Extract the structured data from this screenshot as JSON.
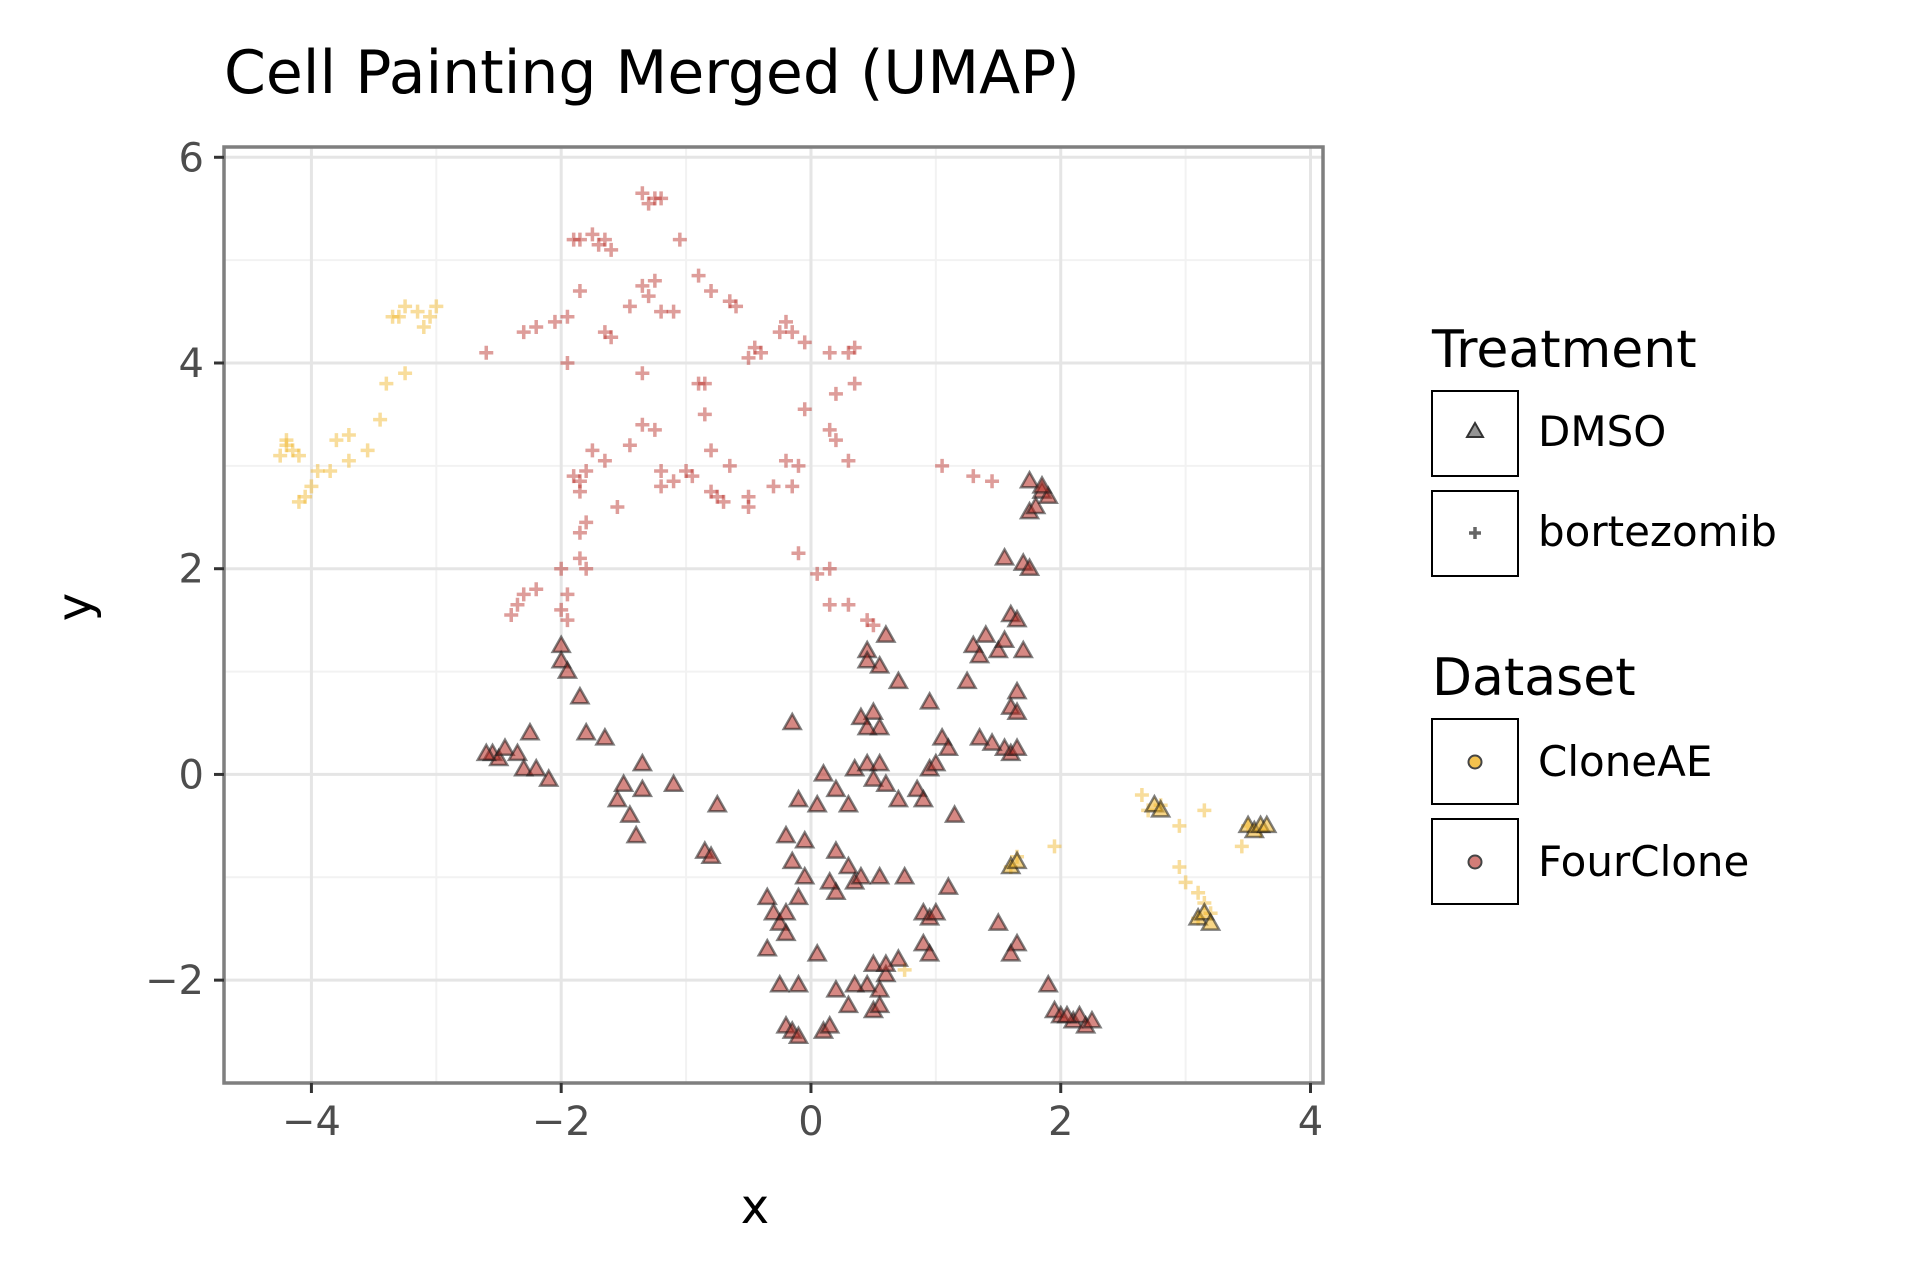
{
  "chart_data": {
    "type": "scatter",
    "title": "Cell Painting Merged (UMAP)",
    "xlabel": "x",
    "ylabel": "y",
    "xlim": [
      -4.7,
      4.1
    ],
    "ylim": [
      -3.0,
      6.1
    ],
    "xticks": [
      -4,
      -2,
      0,
      2,
      4
    ],
    "yticks": [
      -2,
      0,
      2,
      4,
      6
    ],
    "xtick_labels": [
      "−4",
      "−2",
      "0",
      "2",
      "4"
    ],
    "ytick_labels": [
      "−2",
      "0",
      "2",
      "4",
      "6"
    ],
    "grid": true,
    "legend_position": "right",
    "legend": {
      "shape_title": "Treatment",
      "shape_entries": [
        {
          "label": "DMSO",
          "shape": "triangle"
        },
        {
          "label": "bortezomib",
          "shape": "plus"
        }
      ],
      "color_title": "Dataset",
      "color_entries": [
        {
          "label": "CloneAE",
          "color": "#f0b323"
        },
        {
          "label": "FourClone",
          "color": "#b5261e"
        }
      ]
    },
    "colors": {
      "CloneAE": "#f0b323",
      "FourClone": "#b5261e",
      "DMSO_outline": "#1a1a1a",
      "panel_border": "#7f7f7f",
      "grid_major": "#e5e5e5",
      "grid_minor": "#f2f2f2"
    },
    "series": [
      {
        "treatment": "bortezomib",
        "dataset": "CloneAE",
        "points": [
          [
            -4.25,
            3.1
          ],
          [
            -4.2,
            3.2
          ],
          [
            -4.15,
            3.15
          ],
          [
            -4.2,
            3.25
          ],
          [
            -4.1,
            3.1
          ],
          [
            -4.1,
            2.65
          ],
          [
            -4.05,
            2.7
          ],
          [
            -4.0,
            2.8
          ],
          [
            -3.95,
            2.95
          ],
          [
            -3.85,
            2.95
          ],
          [
            -3.8,
            3.25
          ],
          [
            -3.7,
            3.3
          ],
          [
            -3.7,
            3.05
          ],
          [
            -3.55,
            3.15
          ],
          [
            -3.45,
            3.45
          ],
          [
            -3.4,
            3.8
          ],
          [
            -3.25,
            3.9
          ],
          [
            -3.3,
            4.45
          ],
          [
            -3.25,
            4.55
          ],
          [
            -3.15,
            4.5
          ],
          [
            -3.05,
            4.45
          ],
          [
            -3.0,
            4.55
          ],
          [
            -3.1,
            4.35
          ],
          [
            -3.35,
            4.45
          ],
          [
            2.65,
            -0.2
          ],
          [
            2.7,
            -0.35
          ],
          [
            2.8,
            -0.3
          ],
          [
            2.95,
            -0.5
          ],
          [
            2.95,
            -0.9
          ],
          [
            3.0,
            -1.05
          ],
          [
            3.1,
            -1.15
          ],
          [
            3.15,
            -1.25
          ],
          [
            3.1,
            -1.4
          ],
          [
            3.2,
            -1.35
          ],
          [
            3.15,
            -0.35
          ],
          [
            3.45,
            -0.7
          ],
          [
            3.5,
            -0.5
          ],
          [
            3.6,
            -0.55
          ],
          [
            1.65,
            -0.8
          ],
          [
            1.95,
            -0.7
          ],
          [
            1.6,
            -0.9
          ],
          [
            0.75,
            -1.9
          ]
        ]
      },
      {
        "treatment": "bortezomib",
        "dataset": "FourClone",
        "points": [
          [
            -1.35,
            5.65
          ],
          [
            -1.25,
            5.6
          ],
          [
            -1.3,
            5.55
          ],
          [
            -1.2,
            5.6
          ],
          [
            -1.85,
            5.2
          ],
          [
            -1.75,
            5.25
          ],
          [
            -1.7,
            5.15
          ],
          [
            -1.6,
            5.1
          ],
          [
            -1.9,
            5.2
          ],
          [
            -1.65,
            5.2
          ],
          [
            -1.05,
            5.2
          ],
          [
            -2.6,
            4.1
          ],
          [
            -2.3,
            4.3
          ],
          [
            -2.2,
            4.35
          ],
          [
            -2.05,
            4.4
          ],
          [
            -1.95,
            4.45
          ],
          [
            -1.85,
            4.7
          ],
          [
            -1.65,
            4.3
          ],
          [
            -1.6,
            4.25
          ],
          [
            -1.45,
            4.55
          ],
          [
            -1.35,
            4.75
          ],
          [
            -1.3,
            4.65
          ],
          [
            -1.25,
            4.8
          ],
          [
            -1.2,
            4.5
          ],
          [
            -1.1,
            4.5
          ],
          [
            -0.9,
            4.85
          ],
          [
            -0.8,
            4.7
          ],
          [
            -0.65,
            4.6
          ],
          [
            -0.6,
            4.55
          ],
          [
            -0.25,
            4.3
          ],
          [
            -0.2,
            4.4
          ],
          [
            -0.15,
            4.3
          ],
          [
            -0.05,
            4.2
          ],
          [
            -0.5,
            4.05
          ],
          [
            -0.45,
            4.15
          ],
          [
            -0.4,
            4.1
          ],
          [
            0.15,
            4.1
          ],
          [
            0.3,
            4.1
          ],
          [
            0.35,
            4.15
          ],
          [
            -1.95,
            4.0
          ],
          [
            -1.35,
            3.9
          ],
          [
            -0.9,
            3.8
          ],
          [
            -0.85,
            3.8
          ],
          [
            -0.85,
            3.5
          ],
          [
            -0.05,
            3.55
          ],
          [
            0.2,
            3.7
          ],
          [
            0.35,
            3.8
          ],
          [
            -1.35,
            3.4
          ],
          [
            -1.25,
            3.35
          ],
          [
            -1.45,
            3.2
          ],
          [
            -0.8,
            3.15
          ],
          [
            0.15,
            3.35
          ],
          [
            0.2,
            3.25
          ],
          [
            0.3,
            3.05
          ],
          [
            -0.65,
            3.0
          ],
          [
            -0.2,
            3.05
          ],
          [
            -0.1,
            3.0
          ],
          [
            -1.75,
            3.15
          ],
          [
            -1.65,
            3.05
          ],
          [
            -1.9,
            2.9
          ],
          [
            -1.85,
            2.85
          ],
          [
            -1.8,
            2.95
          ],
          [
            -1.2,
            2.95
          ],
          [
            -1.0,
            2.95
          ],
          [
            -0.95,
            2.9
          ],
          [
            -1.1,
            2.85
          ],
          [
            -1.2,
            2.8
          ],
          [
            -0.8,
            2.75
          ],
          [
            -0.75,
            2.7
          ],
          [
            -0.7,
            2.65
          ],
          [
            -0.5,
            2.7
          ],
          [
            -0.3,
            2.8
          ],
          [
            -0.15,
            2.8
          ],
          [
            -0.5,
            2.6
          ],
          [
            -1.55,
            2.6
          ],
          [
            -1.85,
            2.75
          ],
          [
            -1.8,
            2.45
          ],
          [
            -1.85,
            2.35
          ],
          [
            1.05,
            3.0
          ],
          [
            1.3,
            2.9
          ],
          [
            1.45,
            2.85
          ],
          [
            -2.0,
            2.0
          ],
          [
            -1.85,
            2.1
          ],
          [
            -1.8,
            2.0
          ],
          [
            -2.2,
            1.8
          ],
          [
            -2.35,
            1.65
          ],
          [
            -2.3,
            1.75
          ],
          [
            -2.4,
            1.55
          ],
          [
            -2.0,
            1.6
          ],
          [
            -1.95,
            1.5
          ],
          [
            -1.95,
            1.75
          ],
          [
            -0.1,
            2.15
          ],
          [
            0.05,
            1.95
          ],
          [
            0.15,
            2.0
          ],
          [
            0.15,
            1.65
          ],
          [
            0.3,
            1.65
          ],
          [
            0.45,
            1.5
          ],
          [
            0.5,
            1.45
          ]
        ]
      },
      {
        "treatment": "DMSO",
        "dataset": "CloneAE",
        "points": [
          [
            1.6,
            -0.9
          ],
          [
            1.65,
            -0.85
          ],
          [
            2.75,
            -0.3
          ],
          [
            2.8,
            -0.35
          ],
          [
            3.1,
            -1.4
          ],
          [
            3.15,
            -1.35
          ],
          [
            3.2,
            -1.45
          ],
          [
            3.5,
            -0.5
          ],
          [
            3.55,
            -0.55
          ],
          [
            3.6,
            -0.5
          ],
          [
            3.65,
            -0.5
          ]
        ]
      },
      {
        "treatment": "DMSO",
        "dataset": "FourClone",
        "points": [
          [
            -2.55,
            0.2
          ],
          [
            -2.5,
            0.15
          ],
          [
            -2.45,
            0.25
          ],
          [
            -2.6,
            0.2
          ],
          [
            -2.35,
            0.2
          ],
          [
            -2.3,
            0.05
          ],
          [
            -2.2,
            0.05
          ],
          [
            -2.1,
            -0.05
          ],
          [
            -2.25,
            0.4
          ],
          [
            -2.0,
            1.25
          ],
          [
            -2.0,
            1.1
          ],
          [
            -1.95,
            1.0
          ],
          [
            -1.85,
            0.75
          ],
          [
            -1.8,
            0.4
          ],
          [
            -1.65,
            0.35
          ],
          [
            -1.55,
            -0.25
          ],
          [
            -1.5,
            -0.1
          ],
          [
            -1.45,
            -0.4
          ],
          [
            -1.4,
            -0.6
          ],
          [
            -1.35,
            -0.15
          ],
          [
            -1.35,
            0.1
          ],
          [
            -1.1,
            -0.1
          ],
          [
            -0.85,
            -0.75
          ],
          [
            -0.8,
            -0.8
          ],
          [
            -0.75,
            -0.3
          ],
          [
            -0.35,
            -1.2
          ],
          [
            -0.3,
            -1.35
          ],
          [
            -0.25,
            -1.45
          ],
          [
            -0.2,
            -1.35
          ],
          [
            -0.2,
            -1.55
          ],
          [
            -0.1,
            -1.2
          ],
          [
            -0.05,
            -1.0
          ],
          [
            -0.35,
            -1.7
          ],
          [
            -0.25,
            -2.05
          ],
          [
            -0.1,
            -2.05
          ],
          [
            -0.2,
            -2.45
          ],
          [
            -0.15,
            -2.5
          ],
          [
            -0.1,
            -2.55
          ],
          [
            0.1,
            -2.5
          ],
          [
            0.15,
            -2.45
          ],
          [
            0.2,
            -2.1
          ],
          [
            0.3,
            -2.25
          ],
          [
            0.45,
            -2.05
          ],
          [
            0.5,
            -2.3
          ],
          [
            0.55,
            -2.25
          ],
          [
            0.6,
            -1.95
          ],
          [
            0.7,
            -1.8
          ],
          [
            0.05,
            -1.75
          ],
          [
            -0.15,
            -0.85
          ],
          [
            -0.05,
            -0.65
          ],
          [
            -0.2,
            -0.6
          ],
          [
            0.05,
            -0.3
          ],
          [
            -0.1,
            -0.25
          ],
          [
            0.1,
            0.0
          ],
          [
            0.2,
            -0.15
          ],
          [
            0.3,
            -0.3
          ],
          [
            0.35,
            0.05
          ],
          [
            0.45,
            0.1
          ],
          [
            0.5,
            -0.05
          ],
          [
            0.55,
            0.1
          ],
          [
            0.6,
            -0.1
          ],
          [
            0.7,
            -0.25
          ],
          [
            0.85,
            -0.15
          ],
          [
            0.9,
            -0.25
          ],
          [
            0.95,
            0.05
          ],
          [
            1.0,
            0.1
          ],
          [
            1.05,
            0.35
          ],
          [
            1.1,
            0.25
          ],
          [
            1.15,
            -0.4
          ],
          [
            -0.15,
            0.5
          ],
          [
            0.45,
            1.2
          ],
          [
            0.45,
            1.1
          ],
          [
            0.55,
            1.05
          ],
          [
            0.6,
            1.35
          ],
          [
            0.7,
            0.9
          ],
          [
            0.5,
            0.6
          ],
          [
            0.55,
            0.45
          ],
          [
            0.4,
            0.55
          ],
          [
            0.45,
            0.45
          ],
          [
            0.95,
            0.7
          ],
          [
            1.25,
            0.9
          ],
          [
            1.3,
            1.25
          ],
          [
            1.35,
            1.15
          ],
          [
            1.4,
            1.35
          ],
          [
            1.5,
            1.2
          ],
          [
            1.55,
            1.3
          ],
          [
            1.6,
            1.55
          ],
          [
            1.65,
            1.5
          ],
          [
            1.7,
            1.2
          ],
          [
            1.55,
            2.1
          ],
          [
            1.7,
            2.05
          ],
          [
            1.75,
            2.0
          ],
          [
            1.6,
            0.65
          ],
          [
            1.65,
            0.6
          ],
          [
            1.65,
            0.8
          ],
          [
            1.55,
            0.25
          ],
          [
            1.6,
            0.2
          ],
          [
            1.65,
            0.25
          ],
          [
            1.45,
            0.3
          ],
          [
            1.35,
            0.35
          ],
          [
            1.75,
            2.85
          ],
          [
            1.85,
            2.75
          ],
          [
            1.9,
            2.7
          ],
          [
            1.85,
            2.8
          ],
          [
            1.75,
            2.55
          ],
          [
            1.8,
            2.6
          ],
          [
            0.2,
            -0.75
          ],
          [
            0.3,
            -0.9
          ],
          [
            0.35,
            -1.05
          ],
          [
            0.4,
            -1.0
          ],
          [
            0.2,
            -1.15
          ],
          [
            0.15,
            -1.05
          ],
          [
            0.55,
            -1.0
          ],
          [
            0.75,
            -1.0
          ],
          [
            0.9,
            -1.35
          ],
          [
            0.95,
            -1.4
          ],
          [
            1.0,
            -1.35
          ],
          [
            0.9,
            -1.65
          ],
          [
            0.95,
            -1.75
          ],
          [
            1.1,
            -1.1
          ],
          [
            1.5,
            -1.45
          ],
          [
            1.65,
            -1.65
          ],
          [
            1.6,
            -1.75
          ],
          [
            1.9,
            -2.05
          ],
          [
            1.95,
            -2.3
          ],
          [
            2.0,
            -2.35
          ],
          [
            2.1,
            -2.4
          ],
          [
            2.15,
            -2.35
          ],
          [
            2.2,
            -2.45
          ],
          [
            2.25,
            -2.4
          ],
          [
            2.05,
            -2.35
          ],
          [
            0.35,
            -2.05
          ],
          [
            0.5,
            -1.85
          ],
          [
            0.6,
            -1.85
          ],
          [
            0.55,
            -2.1
          ]
        ]
      }
    ]
  }
}
